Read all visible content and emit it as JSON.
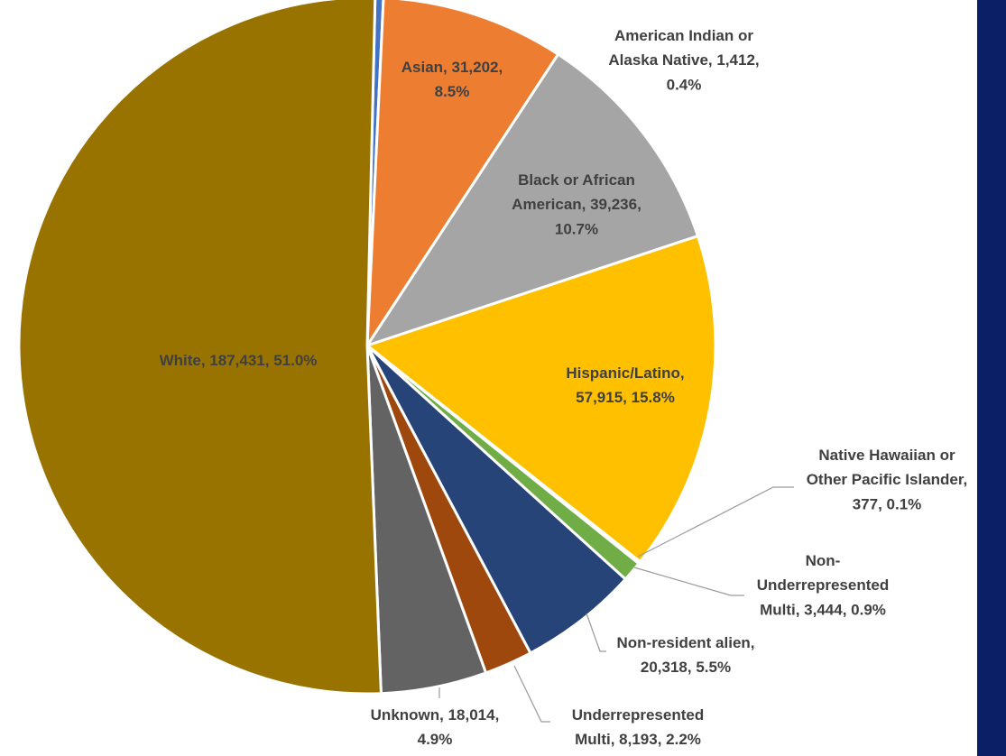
{
  "chart_data": {
    "type": "pie",
    "title": "",
    "start_angle_deg": -88.7,
    "direction": "clockwise",
    "slices": [
      {
        "label": "American Indian or Alaska Native",
        "value": 1412,
        "percent": 0.4,
        "color": "#4472c4",
        "label_lines": [
          "American Indian or",
          "Alaska Native, 1,412,",
          "0.4%"
        ],
        "label_color": "#404040"
      },
      {
        "label": "Asian",
        "value": 31202,
        "percent": 8.5,
        "color": "#ed7d31",
        "label_lines": [
          "Asian, 31,202,",
          "8.5%"
        ],
        "label_color": "#404040"
      },
      {
        "label": "Black or African American",
        "value": 39236,
        "percent": 10.7,
        "color": "#a5a5a5",
        "label_lines": [
          "Black or African",
          "American, 39,236,",
          "10.7%"
        ],
        "label_color": "#404040"
      },
      {
        "label": "Hispanic/Latino",
        "value": 57915,
        "percent": 15.8,
        "color": "#ffc000",
        "label_lines": [
          "Hispanic/Latino,",
          "57,915,  15.8%"
        ],
        "label_color": "#404040"
      },
      {
        "label": "Native Hawaiian or Other Pacific Islander",
        "value": 377,
        "percent": 0.1,
        "color": "#5b9bd5",
        "label_lines": [
          "Native Hawaiian or",
          "Other Pacific Islander,",
          "377,  0.1%"
        ],
        "label_color": "#404040"
      },
      {
        "label": "Non-Underrepresented Multi",
        "value": 3444,
        "percent": 0.9,
        "color": "#70ad47",
        "label_lines": [
          "Non-",
          "Underrepresented",
          "Multi, 3,444,  0.9%"
        ],
        "label_color": "#404040"
      },
      {
        "label": "Non-resident alien",
        "value": 20318,
        "percent": 5.5,
        "color": "#264478",
        "label_lines": [
          "Non-resident alien,",
          "20,318,  5.5%"
        ],
        "label_color": "#404040"
      },
      {
        "label": "Underrepresented Multi",
        "value": 8193,
        "percent": 2.2,
        "color": "#9e480e",
        "label_lines": [
          "Underrepresented",
          "Multi, 8,193,  2.2%"
        ],
        "label_color": "#404040"
      },
      {
        "label": "Unknown",
        "value": 18014,
        "percent": 4.9,
        "color": "#636363",
        "label_lines": [
          "Unknown, 18,014,",
          "4.9%"
        ],
        "label_color": "#404040"
      },
      {
        "label": "White",
        "value": 187431,
        "percent": 51.0,
        "color": "#997300",
        "label_lines": [
          "White, 187,431,  51.0%"
        ],
        "label_color": "#404040"
      }
    ]
  },
  "colors": {
    "right_band": "#0b1f66",
    "slice_border": "#ffffff",
    "leader_line": "#9a9a9a"
  }
}
